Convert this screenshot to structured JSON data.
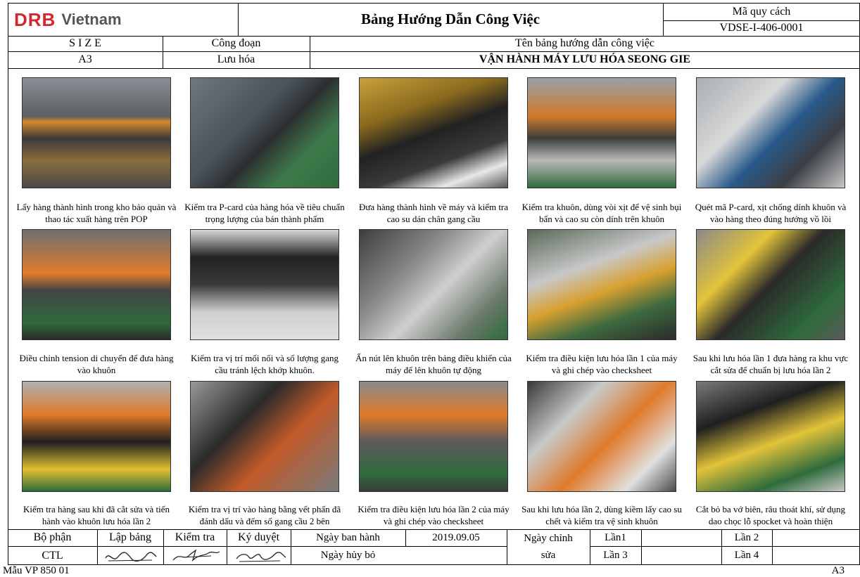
{
  "header": {
    "logo_mark": "DRB",
    "logo_word": "Vietnam",
    "title": "Bảng Hướng Dẫn Công Việc",
    "code_label": "Mã quy cách",
    "code_value": "VDSE-I-406-0001",
    "size_label": "S I Z E",
    "size_value": "A3",
    "stage_label": "Công đoạn",
    "stage_value": "Lưu hóa",
    "guide_name_label": "Tên bảng hướng dẫn công việc",
    "guide_name_value": "VẬN HÀNH MÁY LƯU HÓA SEONG GIE"
  },
  "steps": [
    {
      "caption": "Lấy hàng thành hình trong kho bảo quản và thao tác xuất hàng trên POP"
    },
    {
      "caption": "Kiểm tra P-card của hàng hóa về tiêu chuẩn trọng lượng của bán thành phẩm"
    },
    {
      "caption": "Đưa hàng thành hình về máy và kiểm tra cao su dán chân gang cầu"
    },
    {
      "caption": "Kiểm tra khuôn, dùng vòi xịt để vệ sinh bụi bẩn và cao su còn dính trên khuôn"
    },
    {
      "caption": "Quét mã P-card, xịt chống dính khuôn và vào hàng theo đúng hướng vồ lồi"
    },
    {
      "caption": "Điều chỉnh tension di chuyển để đưa hàng vào khuôn"
    },
    {
      "caption": "Kiểm tra vị trí mối nối và số lượng gang cầu tránh lệch khớp khuôn."
    },
    {
      "caption": "Ấn nút lên khuôn trên bảng điều khiển của máy để lên khuôn tự động"
    },
    {
      "caption": "Kiểm tra điều kiện lưu hóa lần 1 của máy và ghi chép vào checksheet"
    },
    {
      "caption": "Sau khi lưu hóa lần 1 đưa hàng ra khu vực cắt sửa để chuẩn bị lưu hóa lần 2"
    },
    {
      "caption": "Kiểm tra hàng sau khi đã cắt sửa và tiến hành vào khuôn lưu hóa lần 2"
    },
    {
      "caption": "Kiểm tra vị trí vào hàng bằng vết phấn đã đánh dấu và đếm số gang cầu 2 bên"
    },
    {
      "caption": "Kiểm tra điều kiện lưu hóa lần 2 của máy và ghi chép vào checksheet"
    },
    {
      "caption": "Sau khi lưu hóa lần 2, dùng kiềm lấy cao su chết và kiểm tra vệ sinh khuôn"
    },
    {
      "caption": "Cắt bỏ ba vớ biên, râu thoát khí, sử dụng dao chọc lỗ spocket và hoàn thiện"
    }
  ],
  "footer": {
    "dept_label": "Bộ phận",
    "dept_value": "CTL",
    "prepared_label": "Lập bảng",
    "checked_label": "Kiểm tra",
    "approved_label": "Ký duyệt",
    "issue_date_label": "Ngày ban hành",
    "issue_date_value": "2019.09.05",
    "cancel_date_label": "Ngày hủy bỏ",
    "revision_label_1": "Ngày chỉnh",
    "revision_label_2": "sửa",
    "rev1": "Lần1",
    "rev2": "Lần 2",
    "rev3": "Lần 3",
    "rev4": "Lần 4",
    "form_code": "Mẫu VP  850  01",
    "page_size": "A3"
  }
}
